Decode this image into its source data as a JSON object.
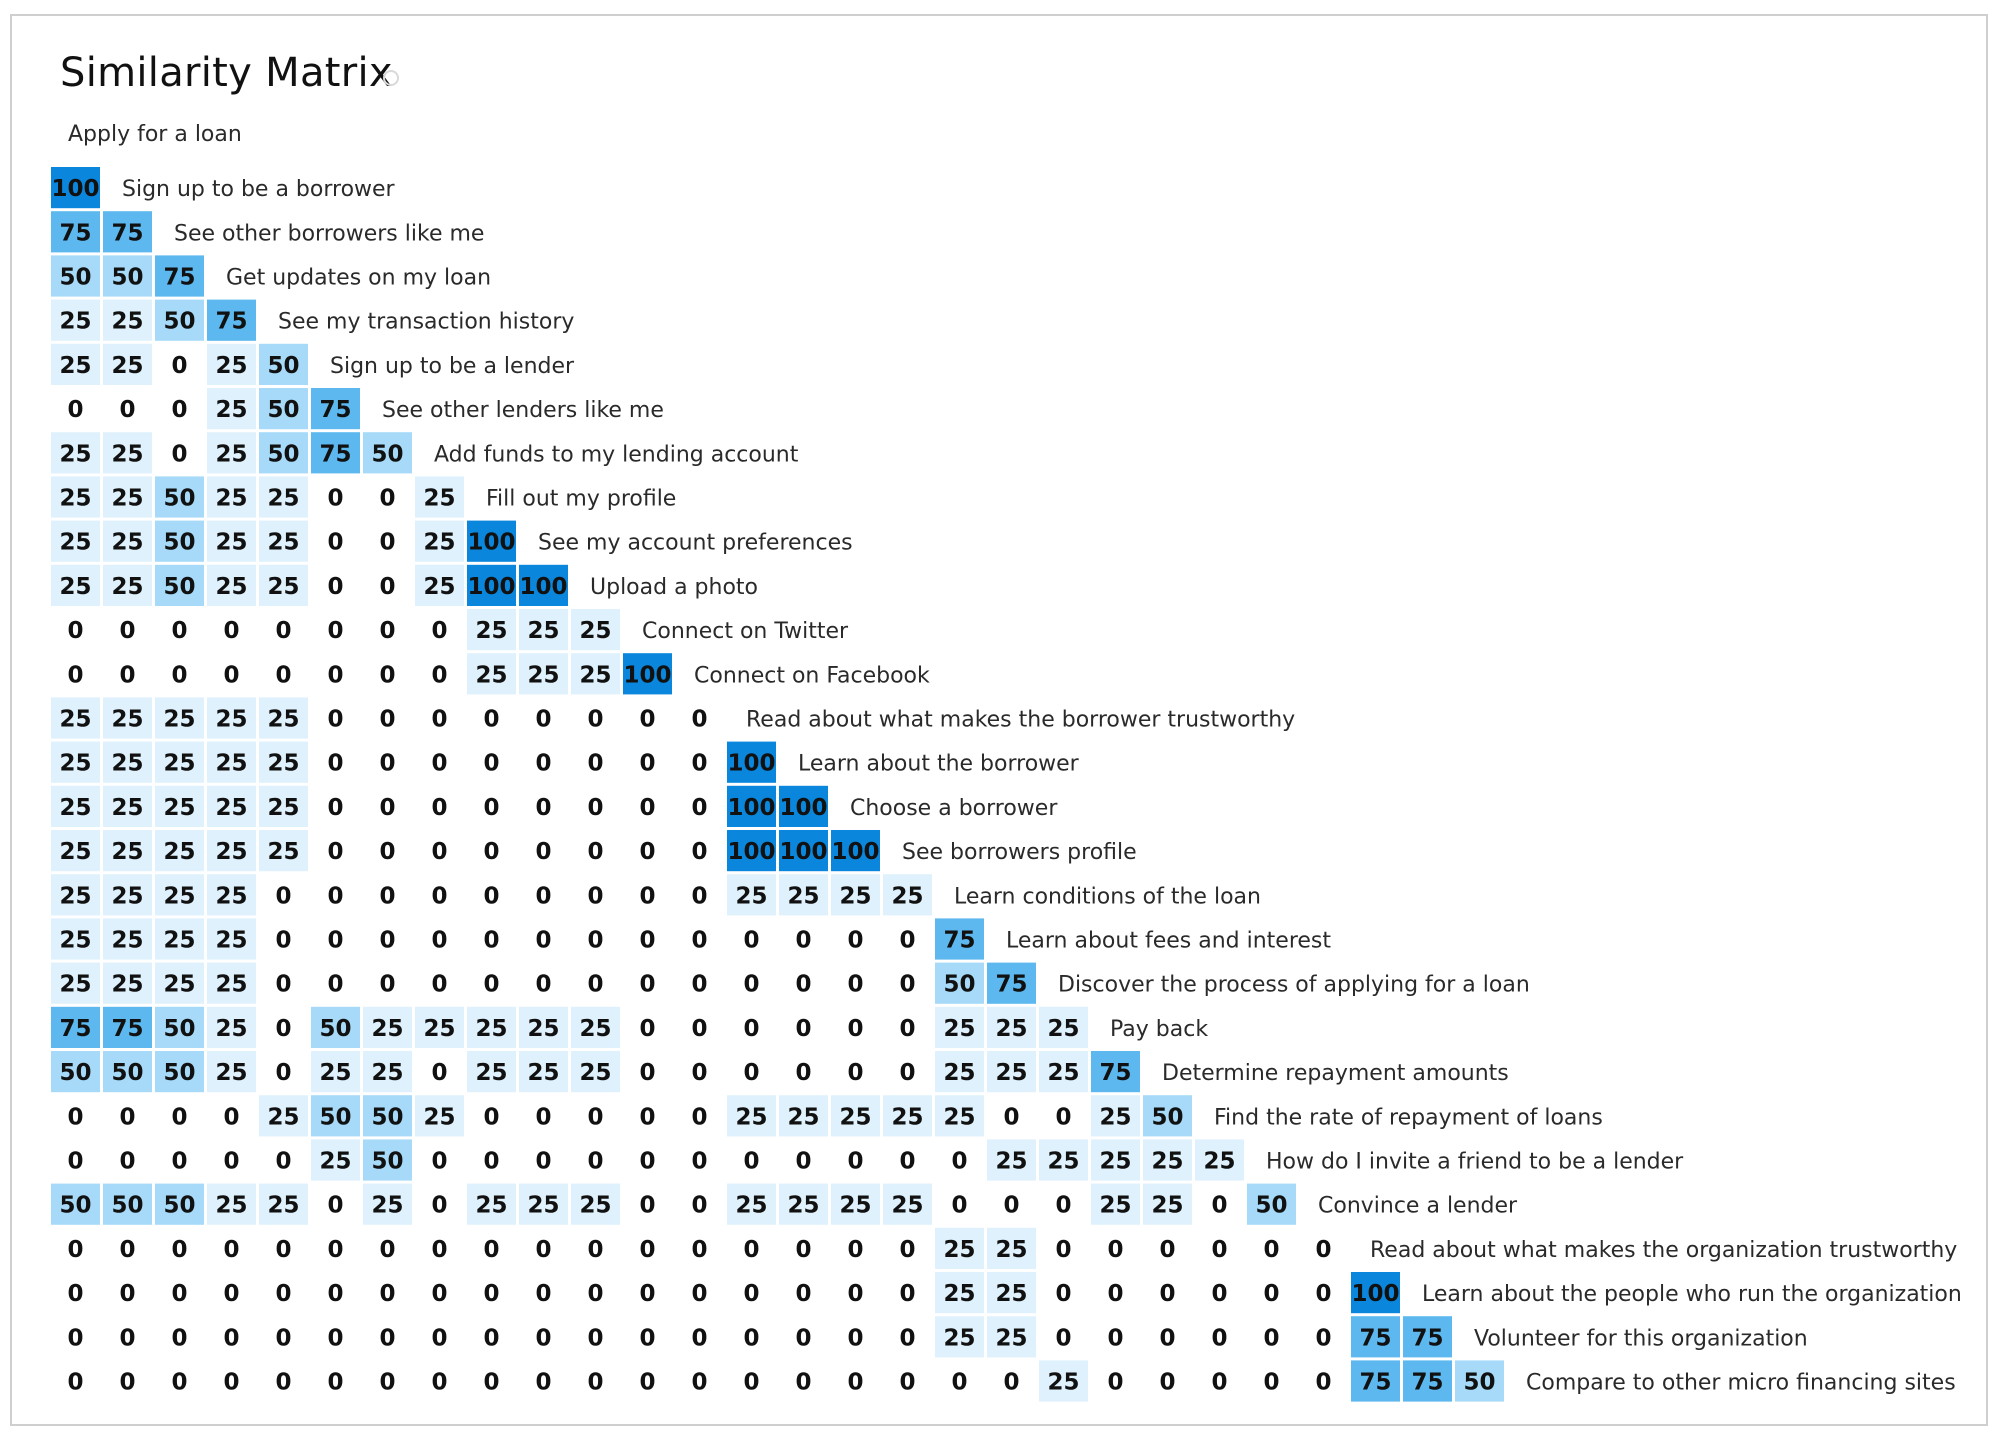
{
  "title": "Similarity Matrix",
  "icons": {
    "title_icon": "refresh-icon"
  },
  "colors": {
    "100": "#0a86dc",
    "75": "#5cb8ee",
    "50": "#a6daf8",
    "25": "#dff1fc",
    "0": "#ffffff",
    "text": "#111111"
  },
  "chart_data": {
    "type": "heatmap",
    "title": "Similarity Matrix",
    "first_item": "Apply for a loan",
    "labels": [
      "Sign up to be a borrower",
      "See other borrowers like me",
      "Get updates on my loan",
      "See my transaction history",
      "Sign up to be a lender",
      "See other lenders like me",
      "Add funds to my lending account",
      "Fill out my profile",
      "See my account preferences",
      "Upload a photo",
      "Connect on Twitter",
      "Connect on Facebook",
      "Read about what makes the borrower trustworthy",
      "Learn about the borrower",
      "Choose a borrower",
      "See borrowers profile",
      "Learn conditions of the loan",
      "Learn about fees and interest",
      "Discover the process of applying for a loan",
      "Pay back",
      "Determine repayment amounts",
      "Find the rate of repayment of loans",
      "How do I invite a friend to be a lender",
      "Convince a lender",
      "Read about what makes the organization trustworthy",
      "Learn about the people who run the organization",
      "Volunteer for this organization",
      "Compare to other micro financing sites"
    ],
    "values": [
      [
        100
      ],
      [
        75,
        75
      ],
      [
        50,
        50,
        75
      ],
      [
        25,
        25,
        50,
        75
      ],
      [
        25,
        25,
        0,
        25,
        50
      ],
      [
        0,
        0,
        0,
        25,
        50,
        75
      ],
      [
        25,
        25,
        0,
        25,
        50,
        75,
        50
      ],
      [
        25,
        25,
        50,
        25,
        25,
        0,
        0,
        25
      ],
      [
        25,
        25,
        50,
        25,
        25,
        0,
        0,
        25,
        100
      ],
      [
        25,
        25,
        50,
        25,
        25,
        0,
        0,
        25,
        100,
        100
      ],
      [
        0,
        0,
        0,
        0,
        0,
        0,
        0,
        0,
        25,
        25,
        25
      ],
      [
        0,
        0,
        0,
        0,
        0,
        0,
        0,
        0,
        25,
        25,
        25,
        100
      ],
      [
        25,
        25,
        25,
        25,
        25,
        0,
        0,
        0,
        0,
        0,
        0,
        0,
        0
      ],
      [
        25,
        25,
        25,
        25,
        25,
        0,
        0,
        0,
        0,
        0,
        0,
        0,
        0,
        100
      ],
      [
        25,
        25,
        25,
        25,
        25,
        0,
        0,
        0,
        0,
        0,
        0,
        0,
        0,
        100,
        100
      ],
      [
        25,
        25,
        25,
        25,
        25,
        0,
        0,
        0,
        0,
        0,
        0,
        0,
        0,
        100,
        100,
        100
      ],
      [
        25,
        25,
        25,
        25,
        0,
        0,
        0,
        0,
        0,
        0,
        0,
        0,
        0,
        25,
        25,
        25,
        25
      ],
      [
        25,
        25,
        25,
        25,
        0,
        0,
        0,
        0,
        0,
        0,
        0,
        0,
        0,
        0,
        0,
        0,
        0,
        75
      ],
      [
        25,
        25,
        25,
        25,
        0,
        0,
        0,
        0,
        0,
        0,
        0,
        0,
        0,
        0,
        0,
        0,
        0,
        50,
        75
      ],
      [
        75,
        75,
        50,
        25,
        0,
        50,
        25,
        25,
        25,
        25,
        25,
        0,
        0,
        0,
        0,
        0,
        0,
        25,
        25,
        25
      ],
      [
        50,
        50,
        50,
        25,
        0,
        25,
        25,
        0,
        25,
        25,
        25,
        0,
        0,
        0,
        0,
        0,
        0,
        25,
        25,
        25,
        75
      ],
      [
        0,
        0,
        0,
        0,
        25,
        50,
        50,
        25,
        0,
        0,
        0,
        0,
        0,
        25,
        25,
        25,
        25,
        25,
        0,
        0,
        25,
        50
      ],
      [
        0,
        0,
        0,
        0,
        0,
        25,
        50,
        0,
        0,
        0,
        0,
        0,
        0,
        0,
        0,
        0,
        0,
        0,
        25,
        25,
        25,
        25,
        25
      ],
      [
        50,
        50,
        50,
        25,
        25,
        0,
        25,
        0,
        25,
        25,
        25,
        0,
        0,
        25,
        25,
        25,
        25,
        0,
        0,
        0,
        25,
        25,
        0,
        50
      ],
      [
        0,
        0,
        0,
        0,
        0,
        0,
        0,
        0,
        0,
        0,
        0,
        0,
        0,
        0,
        0,
        0,
        0,
        25,
        25,
        0,
        0,
        0,
        0,
        0,
        0
      ],
      [
        0,
        0,
        0,
        0,
        0,
        0,
        0,
        0,
        0,
        0,
        0,
        0,
        0,
        0,
        0,
        0,
        0,
        25,
        25,
        0,
        0,
        0,
        0,
        0,
        0,
        100
      ],
      [
        0,
        0,
        0,
        0,
        0,
        0,
        0,
        0,
        0,
        0,
        0,
        0,
        0,
        0,
        0,
        0,
        0,
        25,
        25,
        0,
        0,
        0,
        0,
        0,
        0,
        75,
        75
      ],
      [
        0,
        0,
        0,
        0,
        0,
        0,
        0,
        0,
        0,
        0,
        0,
        0,
        0,
        0,
        0,
        0,
        0,
        0,
        0,
        25,
        0,
        0,
        0,
        0,
        0,
        75,
        75,
        50
      ]
    ]
  }
}
